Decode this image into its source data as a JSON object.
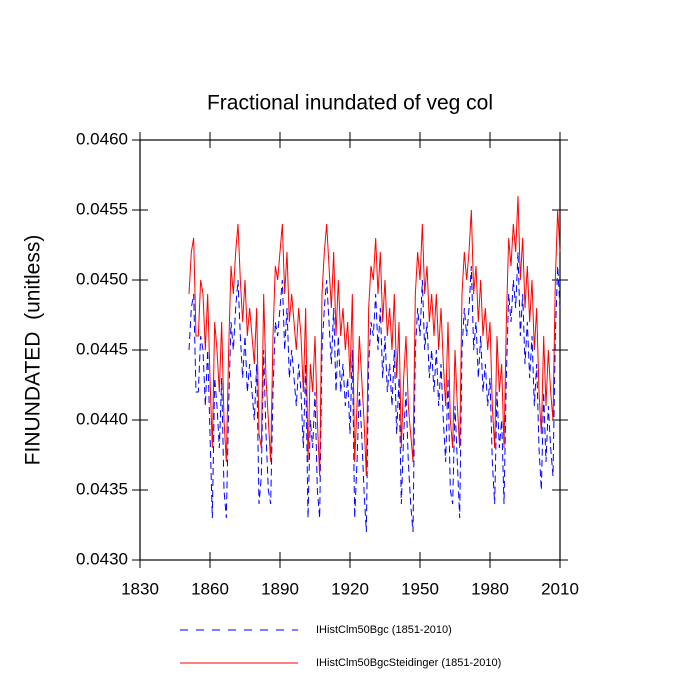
{
  "chart_data": {
    "type": "line",
    "title": "Fractional inundated of veg col",
    "y_label": "FINUNDATED  (unitless)",
    "x": [
      1851,
      1852,
      1853,
      1854,
      1855,
      1856,
      1857,
      1858,
      1859,
      1860,
      1861,
      1862,
      1863,
      1864,
      1865,
      1866,
      1867,
      1868,
      1869,
      1870,
      1871,
      1872,
      1873,
      1874,
      1875,
      1876,
      1877,
      1878,
      1879,
      1880,
      1881,
      1882,
      1883,
      1884,
      1885,
      1886,
      1887,
      1888,
      1889,
      1890,
      1891,
      1892,
      1893,
      1894,
      1895,
      1896,
      1897,
      1898,
      1899,
      1900,
      1901,
      1902,
      1903,
      1904,
      1905,
      1906,
      1907,
      1908,
      1909,
      1910,
      1911,
      1912,
      1913,
      1914,
      1915,
      1916,
      1917,
      1918,
      1919,
      1920,
      1921,
      1922,
      1923,
      1924,
      1925,
      1926,
      1927,
      1928,
      1929,
      1930,
      1931,
      1932,
      1933,
      1934,
      1935,
      1936,
      1937,
      1938,
      1939,
      1940,
      1941,
      1942,
      1943,
      1944,
      1945,
      1946,
      1947,
      1948,
      1949,
      1950,
      1951,
      1952,
      1953,
      1954,
      1955,
      1956,
      1957,
      1958,
      1959,
      1960,
      1961,
      1962,
      1963,
      1964,
      1965,
      1966,
      1967,
      1968,
      1969,
      1970,
      1971,
      1972,
      1973,
      1974,
      1975,
      1976,
      1977,
      1978,
      1979,
      1980,
      1981,
      1982,
      1983,
      1984,
      1985,
      1986,
      1987,
      1988,
      1989,
      1990,
      1991,
      1992,
      1993,
      1994,
      1995,
      1996,
      1997,
      1998,
      1999,
      2000,
      2001,
      2002,
      2003,
      2004,
      2005,
      2006,
      2007,
      2008,
      2009,
      2010
    ],
    "series": [
      {
        "name": "IHistClm50Bgc (1851-2010)",
        "color": "#0000ff",
        "dashed": true,
        "values": [
          0.0445,
          0.0448,
          0.0449,
          0.0442,
          0.0442,
          0.0446,
          0.0445,
          0.0441,
          0.0445,
          0.0439,
          0.0433,
          0.0443,
          0.0441,
          0.0438,
          0.0443,
          0.0435,
          0.0433,
          0.0441,
          0.0447,
          0.0445,
          0.0448,
          0.045,
          0.0446,
          0.0443,
          0.0446,
          0.0442,
          0.0444,
          0.0442,
          0.044,
          0.0444,
          0.0434,
          0.0436,
          0.0445,
          0.0439,
          0.0435,
          0.0434,
          0.0442,
          0.0447,
          0.0446,
          0.0448,
          0.045,
          0.0445,
          0.0448,
          0.0443,
          0.0445,
          0.0443,
          0.0441,
          0.0444,
          0.0442,
          0.0438,
          0.0444,
          0.0433,
          0.044,
          0.0438,
          0.0442,
          0.0435,
          0.0433,
          0.0445,
          0.0448,
          0.045,
          0.0447,
          0.0444,
          0.0448,
          0.0442,
          0.0446,
          0.0442,
          0.0444,
          0.0441,
          0.0443,
          0.0439,
          0.0445,
          0.0433,
          0.0437,
          0.0442,
          0.0439,
          0.0435,
          0.0432,
          0.0444,
          0.0447,
          0.0446,
          0.0449,
          0.0445,
          0.0448,
          0.0443,
          0.0446,
          0.0442,
          0.0444,
          0.0441,
          0.0445,
          0.0439,
          0.0443,
          0.0434,
          0.0439,
          0.0442,
          0.0437,
          0.0434,
          0.0432,
          0.0445,
          0.0448,
          0.0446,
          0.045,
          0.0445,
          0.0447,
          0.0443,
          0.0445,
          0.0442,
          0.0445,
          0.0441,
          0.0444,
          0.044,
          0.0437,
          0.0443,
          0.0435,
          0.0434,
          0.0441,
          0.0437,
          0.0433,
          0.0445,
          0.0448,
          0.0446,
          0.0448,
          0.0451,
          0.0445,
          0.0447,
          0.0443,
          0.0446,
          0.0442,
          0.0444,
          0.0441,
          0.0443,
          0.0437,
          0.0434,
          0.0442,
          0.0438,
          0.044,
          0.0434,
          0.0443,
          0.0449,
          0.0447,
          0.045,
          0.0448,
          0.0452,
          0.0446,
          0.0449,
          0.0444,
          0.0447,
          0.0443,
          0.0446,
          0.0441,
          0.0444,
          0.0438,
          0.0435,
          0.0442,
          0.0437,
          0.0441,
          0.0438,
          0.0436,
          0.0446,
          0.0451,
          0.0448
        ]
      },
      {
        "name": "IHistClm50BgcSteidinger (1851-2010)",
        "color": "#ff0000",
        "dashed": false,
        "values": [
          0.0449,
          0.0452,
          0.0453,
          0.0446,
          0.0446,
          0.045,
          0.0449,
          0.0445,
          0.0449,
          0.0443,
          0.0438,
          0.0447,
          0.0445,
          0.0442,
          0.0447,
          0.044,
          0.0437,
          0.0445,
          0.0451,
          0.0449,
          0.0452,
          0.0454,
          0.045,
          0.0447,
          0.045,
          0.0446,
          0.0448,
          0.0446,
          0.0444,
          0.0448,
          0.0439,
          0.0438,
          0.0449,
          0.0443,
          0.044,
          0.0437,
          0.0446,
          0.0451,
          0.045,
          0.0452,
          0.0454,
          0.0449,
          0.0452,
          0.0447,
          0.0449,
          0.0447,
          0.0445,
          0.0448,
          0.0446,
          0.0442,
          0.0448,
          0.0437,
          0.0444,
          0.0442,
          0.0446,
          0.044,
          0.0436,
          0.0449,
          0.0452,
          0.0454,
          0.0451,
          0.0448,
          0.0452,
          0.0446,
          0.045,
          0.0446,
          0.0448,
          0.0445,
          0.0447,
          0.0443,
          0.0449,
          0.0437,
          0.0441,
          0.0446,
          0.0443,
          0.044,
          0.0436,
          0.0448,
          0.0451,
          0.045,
          0.0453,
          0.0449,
          0.0452,
          0.0447,
          0.045,
          0.0446,
          0.0448,
          0.0445,
          0.0449,
          0.0443,
          0.0447,
          0.0438,
          0.0443,
          0.0446,
          0.0441,
          0.0439,
          0.0437,
          0.0449,
          0.0452,
          0.045,
          0.0454,
          0.0449,
          0.0451,
          0.0447,
          0.0449,
          0.0446,
          0.0449,
          0.0445,
          0.0448,
          0.0444,
          0.0441,
          0.0447,
          0.044,
          0.0438,
          0.0445,
          0.0441,
          0.0438,
          0.0449,
          0.0452,
          0.045,
          0.0452,
          0.0455,
          0.0449,
          0.0451,
          0.0447,
          0.045,
          0.0446,
          0.0448,
          0.0445,
          0.0447,
          0.0441,
          0.0438,
          0.0446,
          0.0442,
          0.0444,
          0.0438,
          0.0447,
          0.0453,
          0.0451,
          0.0454,
          0.0452,
          0.0456,
          0.045,
          0.0453,
          0.0448,
          0.0451,
          0.0447,
          0.045,
          0.0445,
          0.0448,
          0.0442,
          0.0439,
          0.0446,
          0.0441,
          0.0445,
          0.0442,
          0.044,
          0.045,
          0.0455,
          0.0452
        ]
      }
    ],
    "xlim": [
      1830,
      2010
    ],
    "xticks": [
      1830,
      1860,
      1890,
      1920,
      1950,
      1980,
      2010
    ],
    "ylim": [
      0.043,
      0.046
    ],
    "yticks": [
      {
        "value": 0.043,
        "label": "0.0430"
      },
      {
        "value": 0.0435,
        "label": "0.0435"
      },
      {
        "value": 0.044,
        "label": "0.0440"
      },
      {
        "value": 0.0445,
        "label": "0.0445"
      },
      {
        "value": 0.045,
        "label": "0.0450"
      },
      {
        "value": 0.0455,
        "label": "0.0455"
      },
      {
        "value": 0.046,
        "label": "0.0460"
      }
    ],
    "grid": false
  }
}
